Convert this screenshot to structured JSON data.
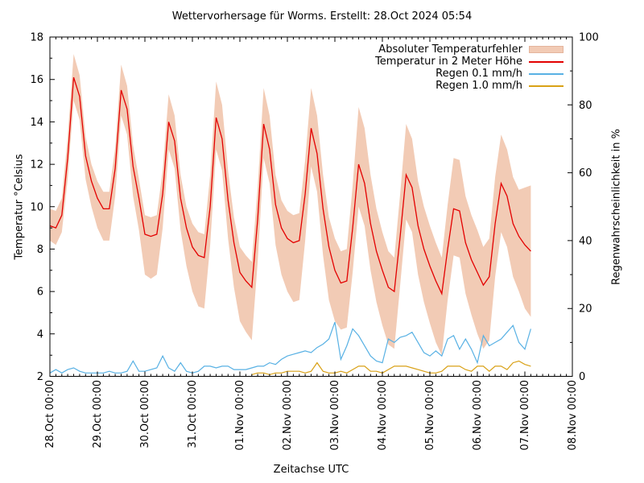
{
  "title": "Wettervorhersage für Worms. Erstellt: 28.Oct 2024 05:54",
  "axes": {
    "x_label": "Zeitachse UTC",
    "y_left_label": "Temperatur °Celsius",
    "y_right_label": "Regenwahrscheinlichkeit in %",
    "x_tick_labels": [
      "28.Oct 00:00",
      "29.Oct 00:00",
      "30.Oct 00:00",
      "31.Oct 00:00",
      "01.Nov 00:00",
      "02.Nov 00:00",
      "03.Nov 00:00",
      "04.Nov 00:00",
      "05.Nov 00:00",
      "06.Nov 00:00",
      "07.Nov 00:00",
      "08.Nov 00:00"
    ],
    "y_left_ticks": [
      2,
      4,
      6,
      8,
      10,
      12,
      14,
      16,
      18
    ],
    "y_right_ticks": [
      0,
      20,
      40,
      60,
      80,
      100
    ]
  },
  "legend": {
    "items": [
      {
        "label": "Absoluter Temperaturfehler",
        "style": "band",
        "color": "#f2cbb5",
        "border_color": "#e4b49c"
      },
      {
        "label": "Temperatur in 2 Meter Höhe",
        "style": "line",
        "color": "#e30000"
      },
      {
        "label": "Regen 0.1 mm/h",
        "style": "line",
        "color": "#58b1e4"
      },
      {
        "label": "Regen 1.0 mm/h",
        "style": "line",
        "color": "#d9a116"
      }
    ]
  },
  "chart_data": {
    "type": "line",
    "title": "Wettervorhersage für Worms. Erstellt: 28.Oct 2024 05:54",
    "xlabel": "Zeitachse UTC",
    "ylabel_left": "Temperatur °Celsius",
    "ylabel_right": "Regenwahrscheinlichkeit in %",
    "x_unit": "hours since 28.Oct 2024 00:00 UTC",
    "x_start_hour": 0,
    "x_step_hours": 3,
    "x_axis_range_hours": [
      0,
      264
    ],
    "x_major_tick_hours": 24,
    "x_minor_tick_hours": 3,
    "y_left_range": [
      2,
      18
    ],
    "y_left_major": 2,
    "y_left_minor": 1,
    "y_right_range": [
      0,
      100
    ],
    "y_right_major": 20,
    "y_right_minor": 10,
    "grid": false,
    "legend_position": "top-right-inside",
    "series": [
      {
        "name": "Absoluter Temperaturfehler (obere Grenze)",
        "role": "band-upper",
        "axis": "left",
        "color": "#f2cbb5",
        "values": [
          9.9,
          9.8,
          10.4,
          13.3,
          17.2,
          16.2,
          13.3,
          12.0,
          11.2,
          10.7,
          10.7,
          12.8,
          16.7,
          15.7,
          12.9,
          11.3,
          9.6,
          9.5,
          9.6,
          11.7,
          15.3,
          14.3,
          11.5,
          10.0,
          9.2,
          8.8,
          8.7,
          11.5,
          15.9,
          14.8,
          11.7,
          9.5,
          8.1,
          7.7,
          7.4,
          10.9,
          15.6,
          14.3,
          11.5,
          10.3,
          9.8,
          9.6,
          9.7,
          12.2,
          15.6,
          14.3,
          11.5,
          9.5,
          8.5,
          7.9,
          8.0,
          11.0,
          14.7,
          13.7,
          11.5,
          9.9,
          8.8,
          7.9,
          7.6,
          10.6,
          13.9,
          13.2,
          11.2,
          10.0,
          9.1,
          8.3,
          7.6,
          10.1,
          12.3,
          12.2,
          10.5,
          9.6,
          8.9,
          8.1,
          8.5,
          11.4,
          13.4,
          12.7,
          11.4,
          10.8,
          10.9,
          11.0
        ]
      },
      {
        "name": "Absoluter Temperaturfehler (untere Grenze)",
        "role": "band-lower",
        "axis": "left",
        "color": "#f2cbb5",
        "values": [
          8.4,
          8.2,
          8.8,
          11.3,
          15.0,
          14.1,
          11.3,
          10.0,
          9.0,
          8.4,
          8.4,
          10.5,
          14.3,
          13.4,
          10.5,
          8.9,
          6.8,
          6.6,
          6.8,
          9.0,
          12.7,
          11.8,
          8.9,
          7.2,
          6.0,
          5.3,
          5.2,
          8.2,
          12.7,
          11.7,
          8.5,
          6.2,
          4.6,
          4.1,
          3.7,
          7.4,
          12.3,
          11.1,
          8.2,
          6.8,
          6.0,
          5.5,
          5.6,
          8.4,
          11.9,
          10.7,
          7.7,
          5.6,
          4.6,
          4.2,
          4.3,
          6.9,
          10.0,
          9.1,
          7.0,
          5.5,
          4.4,
          3.5,
          3.3,
          6.3,
          9.4,
          8.8,
          6.8,
          5.5,
          4.5,
          3.6,
          3.0,
          5.6,
          7.7,
          7.6,
          5.9,
          4.9,
          4.0,
          3.3,
          3.7,
          6.7,
          8.8,
          8.1,
          6.7,
          6.0,
          5.2,
          4.8
        ]
      },
      {
        "name": "Temperatur in 2 Meter Höhe",
        "role": "temperature",
        "axis": "left",
        "color": "#e30000",
        "unit": "°C",
        "values": [
          9.1,
          9.0,
          9.6,
          12.3,
          16.1,
          15.2,
          12.4,
          11.2,
          10.4,
          9.9,
          9.9,
          11.8,
          15.5,
          14.6,
          11.9,
          10.4,
          8.7,
          8.6,
          8.7,
          10.6,
          14.0,
          13.1,
          10.4,
          9.0,
          8.1,
          7.7,
          7.6,
          10.0,
          14.2,
          13.2,
          10.3,
          8.3,
          6.9,
          6.5,
          6.2,
          9.4,
          13.9,
          12.7,
          10.1,
          9.0,
          8.5,
          8.3,
          8.4,
          10.6,
          13.7,
          12.5,
          9.9,
          8.1,
          7.0,
          6.4,
          6.5,
          9.0,
          12.0,
          11.1,
          9.2,
          7.9,
          7.0,
          6.2,
          6.0,
          8.6,
          11.5,
          10.9,
          9.1,
          8.0,
          7.2,
          6.5,
          5.9,
          8.0,
          9.9,
          9.8,
          8.3,
          7.5,
          6.9,
          6.3,
          6.7,
          9.2,
          11.1,
          10.5,
          9.2,
          8.6,
          8.2,
          7.9
        ]
      },
      {
        "name": "Regen 0.1 mm/h",
        "role": "rain-01",
        "axis": "right",
        "color": "#58b1e4",
        "unit": "%",
        "values": [
          1,
          2,
          1,
          2,
          2.5,
          1.5,
          1,
          1,
          1,
          1,
          1.5,
          1,
          1,
          1.5,
          4.5,
          1.5,
          1.5,
          2,
          2.5,
          6,
          2.5,
          1.5,
          4,
          1.5,
          1,
          1.5,
          3,
          3,
          2.5,
          3,
          3,
          2,
          2,
          2,
          2.5,
          3,
          3,
          4,
          3.5,
          5,
          6,
          6.5,
          7,
          7.5,
          7,
          8.5,
          9.5,
          11,
          16,
          5,
          9,
          14,
          12,
          9,
          6,
          4.5,
          4,
          11,
          10,
          11.5,
          12,
          13,
          10,
          7,
          6,
          7.5,
          6,
          11,
          12,
          8,
          11,
          8,
          4,
          12,
          9,
          10,
          11,
          13,
          15,
          10,
          8,
          14
        ]
      },
      {
        "name": "Regen 1.0 mm/h",
        "role": "rain-10",
        "axis": "right",
        "color": "#d9a116",
        "unit": "%",
        "values": [
          null,
          null,
          null,
          null,
          null,
          null,
          null,
          null,
          null,
          null,
          null,
          null,
          null,
          null,
          null,
          null,
          null,
          null,
          null,
          null,
          null,
          null,
          null,
          null,
          null,
          null,
          null,
          null,
          null,
          null,
          null,
          null,
          null,
          null,
          0.5,
          1,
          1,
          0.5,
          1,
          1,
          1.5,
          1.5,
          1.5,
          1,
          1.5,
          4,
          1.5,
          1,
          1,
          1.5,
          1,
          2,
          3,
          3,
          1.5,
          1.5,
          1,
          2,
          3,
          3,
          3,
          2.5,
          2,
          1.5,
          1,
          1,
          1.5,
          3,
          3,
          3,
          2,
          1.5,
          3,
          3,
          1.5,
          3,
          3,
          2,
          4,
          4.5,
          3.5,
          3
        ]
      }
    ]
  }
}
